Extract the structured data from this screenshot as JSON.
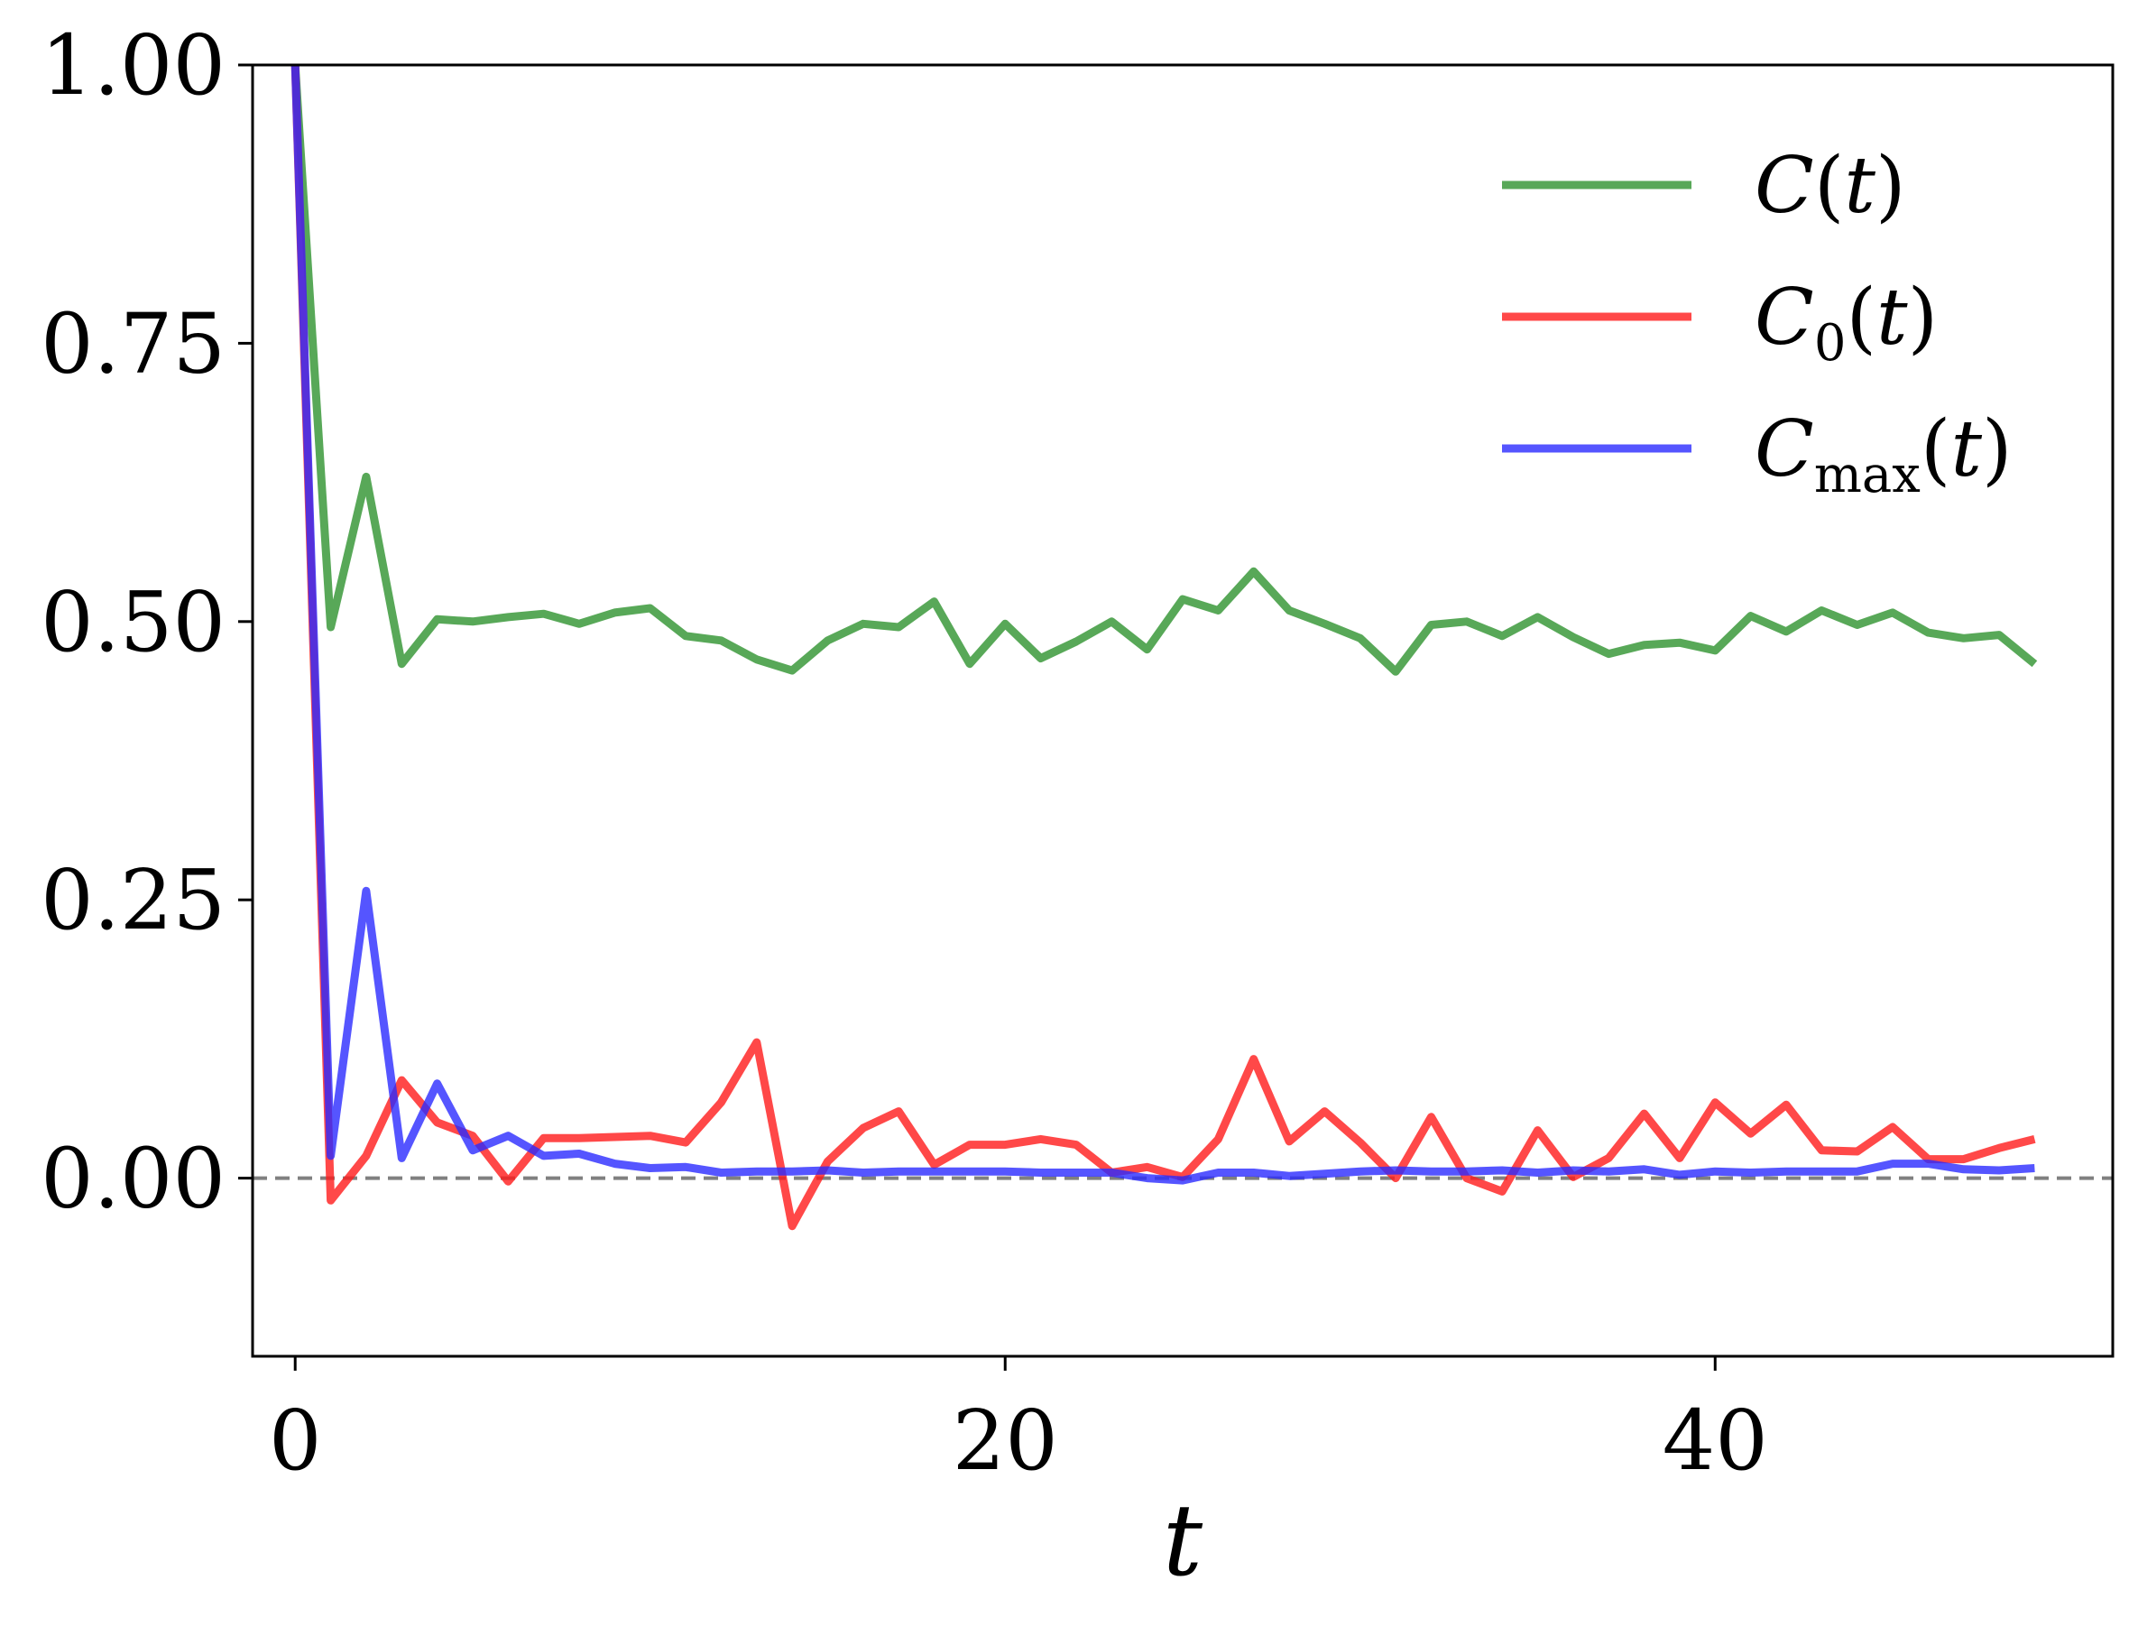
{
  "chart_data": {
    "type": "line",
    "xlabel": "t",
    "ylabel": "",
    "title": "",
    "xlim": [
      -1.2,
      51.2
    ],
    "ylim": [
      -0.16,
      1.0
    ],
    "xticks": [
      0,
      20,
      40
    ],
    "xtick_labels": [
      "0",
      "20",
      "40"
    ],
    "yticks": [
      0.0,
      0.25,
      0.5,
      0.75,
      1.0
    ],
    "ytick_labels": [
      "0.00",
      "0.25",
      "0.50",
      "0.75",
      "1.00"
    ],
    "grid": false,
    "legend_position": "top-right",
    "reference_line": {
      "y": 0,
      "style": "dashed",
      "color": "#808080"
    },
    "x": [
      0,
      1,
      2,
      3,
      4,
      5,
      6,
      7,
      8,
      9,
      10,
      11,
      12,
      13,
      14,
      15,
      16,
      17,
      18,
      19,
      20,
      21,
      22,
      23,
      24,
      25,
      26,
      27,
      28,
      29,
      30,
      31,
      32,
      33,
      34,
      35,
      36,
      37,
      38,
      39,
      40,
      41,
      42,
      43,
      44,
      45,
      46,
      47,
      48,
      49
    ],
    "series": [
      {
        "name": "C(t)",
        "label_main": "C",
        "label_sub": "",
        "label_tail": "(t)",
        "color": "#2e922e",
        "values": [
          1.0,
          0.495,
          0.63,
          0.462,
          0.502,
          0.5,
          0.504,
          0.507,
          0.498,
          0.508,
          0.512,
          0.487,
          0.483,
          0.466,
          0.456,
          0.483,
          0.498,
          0.495,
          0.518,
          0.462,
          0.498,
          0.467,
          0.482,
          0.5,
          0.475,
          0.52,
          0.51,
          0.545,
          0.51,
          0.498,
          0.485,
          0.455,
          0.497,
          0.5,
          0.487,
          0.504,
          0.486,
          0.471,
          0.479,
          0.481,
          0.474,
          0.505,
          0.491,
          0.51,
          0.497,
          0.508,
          0.49,
          0.485,
          0.488,
          0.462
        ]
      },
      {
        "name": "C0(t)",
        "label_main": "C",
        "label_sub": "0",
        "label_tail": "(t)",
        "color": "#ff1a1a",
        "values": [
          1.0,
          -0.02,
          0.02,
          0.088,
          0.05,
          0.038,
          -0.003,
          0.036,
          0.036,
          0.037,
          0.038,
          0.032,
          0.068,
          0.122,
          -0.043,
          0.015,
          0.045,
          0.06,
          0.012,
          0.03,
          0.03,
          0.035,
          0.03,
          0.005,
          0.01,
          0.001,
          0.035,
          0.107,
          0.033,
          0.06,
          0.032,
          0.0,
          0.055,
          0.0,
          -0.012,
          0.043,
          0.001,
          0.018,
          0.058,
          0.018,
          0.068,
          0.04,
          0.066,
          0.025,
          0.024,
          0.046,
          0.017,
          0.017,
          0.027,
          0.035
        ]
      },
      {
        "name": "Cmax(t)",
        "label_main": "C",
        "label_sub": "max",
        "label_tail": "(t)",
        "color": "#2a2aff",
        "values": [
          1.0,
          0.02,
          0.258,
          0.018,
          0.085,
          0.025,
          0.038,
          0.02,
          0.022,
          0.013,
          0.009,
          0.01,
          0.005,
          0.006,
          0.006,
          0.007,
          0.005,
          0.006,
          0.006,
          0.006,
          0.006,
          0.005,
          0.005,
          0.005,
          0.0,
          -0.002,
          0.005,
          0.005,
          0.002,
          0.004,
          0.006,
          0.007,
          0.006,
          0.006,
          0.007,
          0.005,
          0.007,
          0.006,
          0.008,
          0.003,
          0.006,
          0.005,
          0.006,
          0.006,
          0.006,
          0.013,
          0.013,
          0.008,
          0.007,
          0.009
        ]
      }
    ]
  }
}
